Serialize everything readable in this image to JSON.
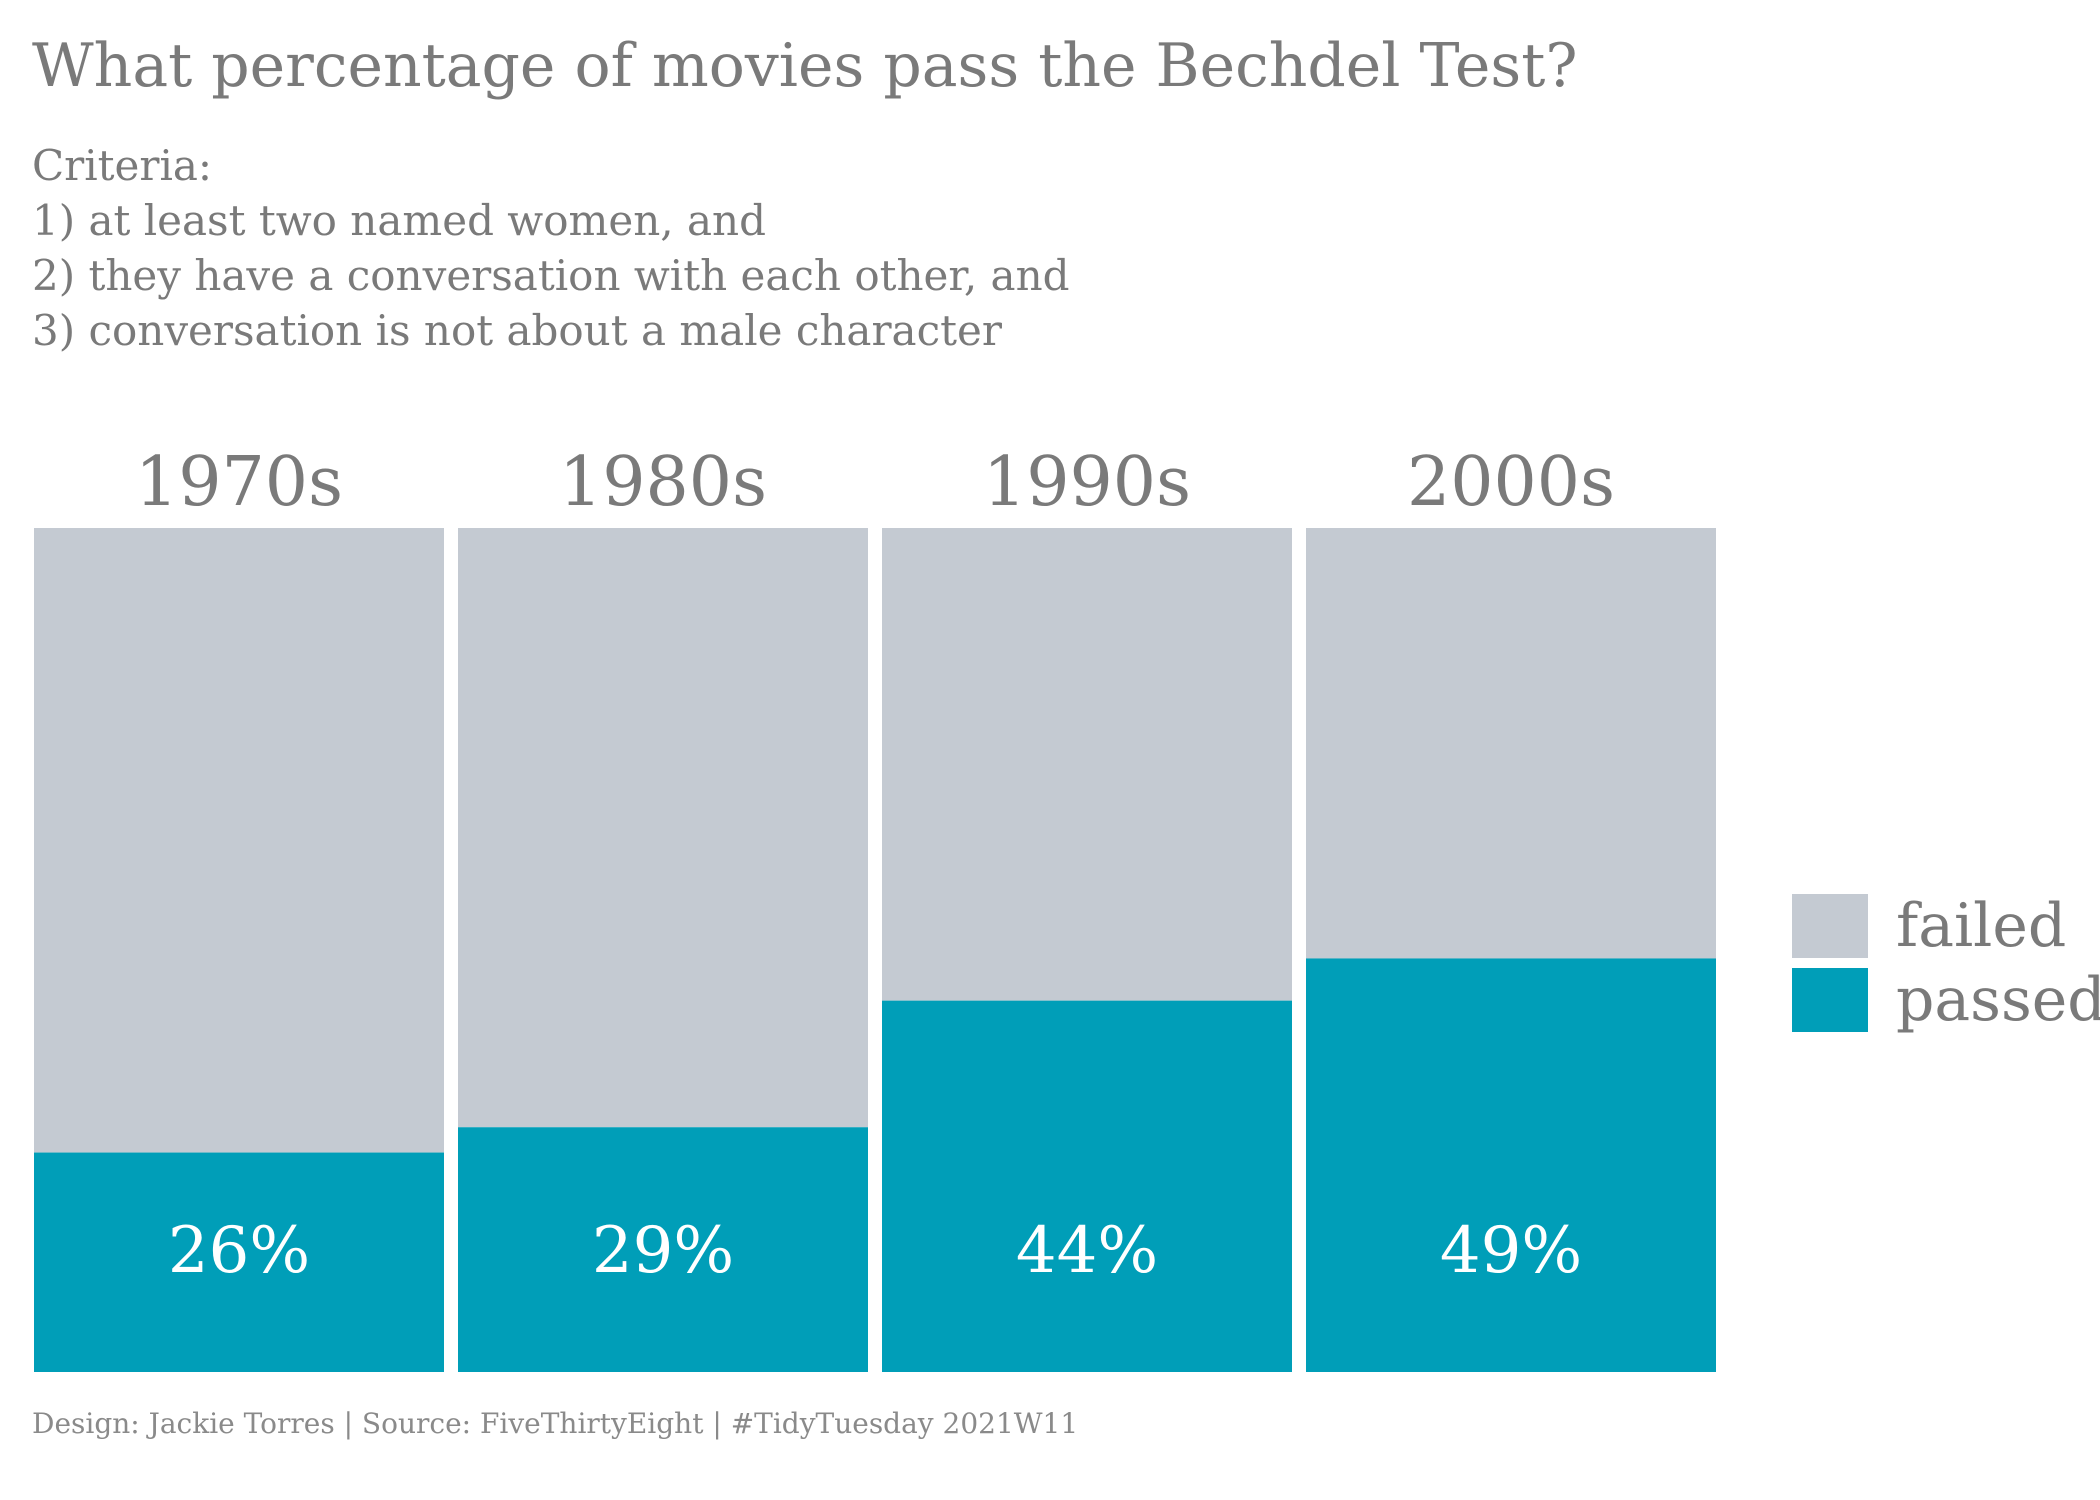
{
  "title": "What percentage of movies pass the Bechdel Test?",
  "subtitle_lines": [
    "Criteria:",
    "1) at least two named women, and",
    "2) they have a conversation with each other, and",
    "3) conversation is not about a male character"
  ],
  "caption": "Design: Jackie Torres | Source: FiveThirtyEight | #TidyTuesday 2021W11",
  "colors": {
    "failed": "#c4cad2",
    "passed": "#009eb8",
    "panel_label": "#7a7a7a",
    "value_label": "#ffffff"
  },
  "chart_data": {
    "type": "bar",
    "stacked": true,
    "categories": [
      "1970s",
      "1980s",
      "1990s",
      "2000s"
    ],
    "series": [
      {
        "name": "passed",
        "values": [
          26,
          29,
          44,
          49
        ]
      },
      {
        "name": "failed",
        "values": [
          74,
          71,
          56,
          51
        ]
      }
    ],
    "data_labels": [
      "26%",
      "29%",
      "44%",
      "49%"
    ],
    "ylim": [
      0,
      100
    ],
    "grid": false,
    "legend": {
      "placement": "right",
      "entries": [
        "failed",
        "passed"
      ]
    }
  }
}
